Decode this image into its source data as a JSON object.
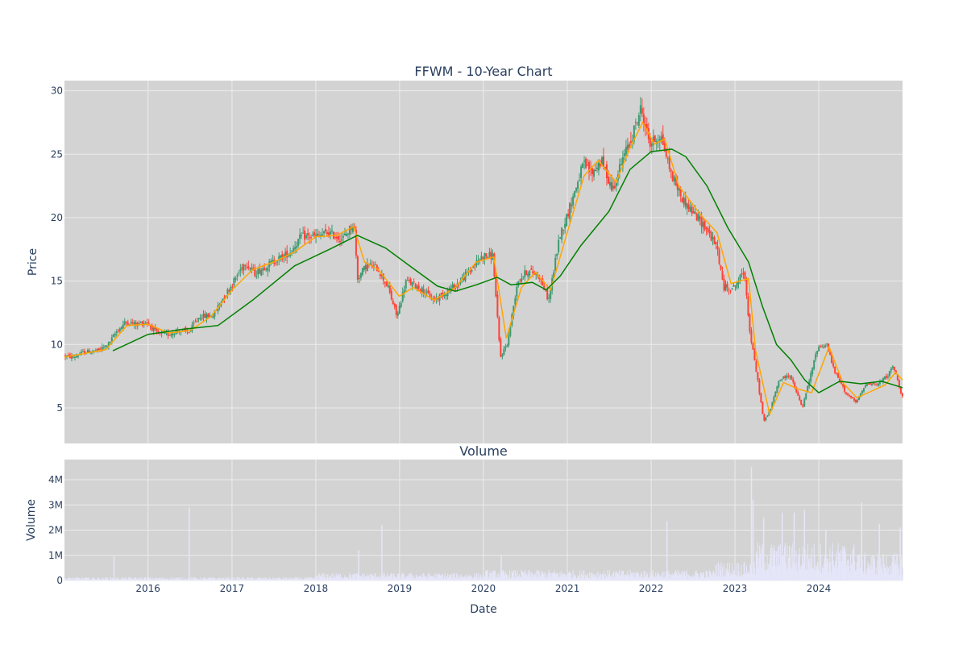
{
  "colors": {
    "plot_bg": "#d3d3d3",
    "grid": "#ececec",
    "increasing": "#3d9970",
    "decreasing": "#ff4136",
    "ma_short": "#ffa500",
    "ma_long": "#008000",
    "volume_bar": "#e6e6fa",
    "text": "#2a3f5f"
  },
  "chart_data": [
    {
      "type": "candlestick",
      "title": "FFWM - 10-Year Chart",
      "xlabel": "",
      "ylabel": "Price",
      "xlim": [
        "2015-01-02",
        "2024-12-31"
      ],
      "ylim": [
        2.2,
        30.8
      ],
      "yticks": [
        5,
        10,
        15,
        20,
        25,
        30
      ],
      "grid": true,
      "legend": "none",
      "series": [
        {
          "kind": "close_price",
          "points": [
            [
              "2015-01-02",
              9.1
            ],
            [
              "2015-02-15",
              9.0
            ],
            [
              "2015-04-01",
              9.4
            ],
            [
              "2015-06-01",
              9.5
            ],
            [
              "2015-07-15",
              10.0
            ],
            [
              "2015-08-20",
              11.0
            ],
            [
              "2015-10-01",
              11.8
            ],
            [
              "2015-11-15",
              11.6
            ],
            [
              "2015-12-30",
              11.8
            ],
            [
              "2016-02-15",
              10.8
            ],
            [
              "2016-04-01",
              10.8
            ],
            [
              "2016-05-15",
              11.1
            ],
            [
              "2016-07-01",
              11.0
            ],
            [
              "2016-08-15",
              12.2
            ],
            [
              "2016-10-15",
              12.3
            ],
            [
              "2016-11-20",
              13.5
            ],
            [
              "2016-12-31",
              14.6
            ],
            [
              "2017-03-01",
              16.5
            ],
            [
              "2017-04-15",
              15.6
            ],
            [
              "2017-06-01",
              16.2
            ],
            [
              "2017-08-01",
              16.8
            ],
            [
              "2017-09-15",
              17.3
            ],
            [
              "2017-11-01",
              18.5
            ],
            [
              "2017-12-31",
              18.5
            ],
            [
              "2018-03-01",
              18.8
            ],
            [
              "2018-05-01",
              18.3
            ],
            [
              "2018-06-20",
              19.6
            ],
            [
              "2018-07-05",
              15.2
            ],
            [
              "2018-08-15",
              16.3
            ],
            [
              "2018-10-01",
              16.0
            ],
            [
              "2018-11-15",
              14.5
            ],
            [
              "2018-12-24",
              12.2
            ],
            [
              "2019-02-01",
              15.0
            ],
            [
              "2019-04-01",
              14.5
            ],
            [
              "2019-06-01",
              13.5
            ],
            [
              "2019-08-01",
              14.2
            ],
            [
              "2019-09-15",
              14.8
            ],
            [
              "2019-11-15",
              16.0
            ],
            [
              "2019-12-31",
              17.0
            ],
            [
              "2020-02-15",
              17.0
            ],
            [
              "2020-03-18",
              9.0
            ],
            [
              "2020-04-20",
              10.2
            ],
            [
              "2020-06-01",
              15.0
            ],
            [
              "2020-07-15",
              15.8
            ],
            [
              "2020-09-01",
              15.5
            ],
            [
              "2020-10-15",
              13.5
            ],
            [
              "2020-12-01",
              18.5
            ],
            [
              "2020-12-31",
              20.0
            ],
            [
              "2021-03-15",
              24.2
            ],
            [
              "2021-04-20",
              23.5
            ],
            [
              "2021-06-01",
              24.5
            ],
            [
              "2021-07-20",
              22.2
            ],
            [
              "2021-09-01",
              24.5
            ],
            [
              "2021-10-15",
              26.5
            ],
            [
              "2021-11-20",
              28.6
            ],
            [
              "2021-12-31",
              25.8
            ],
            [
              "2022-02-15",
              26.5
            ],
            [
              "2022-04-01",
              23.5
            ],
            [
              "2022-05-20",
              21.5
            ],
            [
              "2022-07-01",
              20.5
            ],
            [
              "2022-09-01",
              19.2
            ],
            [
              "2022-10-20",
              17.5
            ],
            [
              "2022-11-15",
              14.5
            ],
            [
              "2022-12-31",
              14.5
            ],
            [
              "2023-02-15",
              15.8
            ],
            [
              "2023-03-10",
              11.0
            ],
            [
              "2023-04-15",
              7.0
            ],
            [
              "2023-05-10",
              3.9
            ],
            [
              "2023-06-10",
              5.0
            ],
            [
              "2023-07-15",
              7.2
            ],
            [
              "2023-09-01",
              7.6
            ],
            [
              "2023-10-25",
              5.0
            ],
            [
              "2023-12-31",
              9.8
            ],
            [
              "2024-02-10",
              10.0
            ],
            [
              "2024-03-10",
              8.0
            ],
            [
              "2024-05-01",
              6.2
            ],
            [
              "2024-06-15",
              5.4
            ],
            [
              "2024-08-01",
              7.0
            ],
            [
              "2024-09-15",
              6.8
            ],
            [
              "2024-11-01",
              7.6
            ],
            [
              "2024-11-25",
              8.3
            ],
            [
              "2024-12-31",
              6.0
            ]
          ]
        },
        {
          "name": "",
          "kind": "moving_average_short",
          "points": [
            [
              "2015-01-02",
              9.0
            ],
            [
              "2015-04-01",
              9.3
            ],
            [
              "2015-07-01",
              9.6
            ],
            [
              "2015-10-01",
              11.5
            ],
            [
              "2016-01-01",
              11.6
            ],
            [
              "2016-04-01",
              10.9
            ],
            [
              "2016-07-01",
              11.1
            ],
            [
              "2016-10-01",
              12.2
            ],
            [
              "2017-01-01",
              14.3
            ],
            [
              "2017-04-01",
              15.9
            ],
            [
              "2017-07-01",
              16.5
            ],
            [
              "2017-10-01",
              17.3
            ],
            [
              "2018-01-01",
              18.5
            ],
            [
              "2018-04-01",
              18.6
            ],
            [
              "2018-06-15",
              19.3
            ],
            [
              "2018-08-01",
              16.5
            ],
            [
              "2018-10-01",
              15.9
            ],
            [
              "2018-12-31",
              13.8
            ],
            [
              "2019-03-01",
              14.5
            ],
            [
              "2019-06-01",
              13.5
            ],
            [
              "2019-09-01",
              14.5
            ],
            [
              "2019-12-01",
              16.5
            ],
            [
              "2020-02-15",
              16.9
            ],
            [
              "2020-04-10",
              10.5
            ],
            [
              "2020-06-15",
              14.5
            ],
            [
              "2020-08-15",
              15.7
            ],
            [
              "2020-10-20",
              14.3
            ],
            [
              "2020-12-31",
              18.8
            ],
            [
              "2021-03-15",
              23.3
            ],
            [
              "2021-05-15",
              24.5
            ],
            [
              "2021-08-01",
              22.8
            ],
            [
              "2021-10-01",
              25.5
            ],
            [
              "2021-11-25",
              27.5
            ],
            [
              "2022-01-15",
              25.8
            ],
            [
              "2022-03-01",
              26.2
            ],
            [
              "2022-05-01",
              22.5
            ],
            [
              "2022-08-01",
              20.3
            ],
            [
              "2022-10-15",
              18.8
            ],
            [
              "2022-12-15",
              14.8
            ],
            [
              "2023-03-01",
              15.2
            ],
            [
              "2023-04-01",
              9.5
            ],
            [
              "2023-06-01",
              4.5
            ],
            [
              "2023-08-01",
              7.0
            ],
            [
              "2023-10-01",
              6.5
            ],
            [
              "2023-12-01",
              6.2
            ],
            [
              "2024-02-15",
              9.8
            ],
            [
              "2024-04-15",
              7.0
            ],
            [
              "2024-06-15",
              5.8
            ],
            [
              "2024-08-15",
              6.3
            ],
            [
              "2024-10-15",
              6.8
            ],
            [
              "2024-12-01",
              7.8
            ],
            [
              "2024-12-31",
              7.2
            ]
          ]
        },
        {
          "name": "",
          "kind": "moving_average_long",
          "points": [
            [
              "2015-08-01",
              9.5
            ],
            [
              "2016-01-01",
              10.8
            ],
            [
              "2016-06-01",
              11.2
            ],
            [
              "2016-11-01",
              11.5
            ],
            [
              "2017-04-01",
              13.5
            ],
            [
              "2017-10-01",
              16.2
            ],
            [
              "2018-03-01",
              17.5
            ],
            [
              "2018-07-01",
              18.6
            ],
            [
              "2018-11-01",
              17.6
            ],
            [
              "2019-03-01",
              16.0
            ],
            [
              "2019-06-15",
              14.6
            ],
            [
              "2019-09-01",
              14.2
            ],
            [
              "2019-12-01",
              14.7
            ],
            [
              "2020-03-01",
              15.3
            ],
            [
              "2020-05-01",
              14.7
            ],
            [
              "2020-08-01",
              14.9
            ],
            [
              "2020-10-01",
              14.3
            ],
            [
              "2020-12-01",
              15.4
            ],
            [
              "2021-03-01",
              17.8
            ],
            [
              "2021-07-01",
              20.5
            ],
            [
              "2021-10-01",
              23.8
            ],
            [
              "2022-01-01",
              25.2
            ],
            [
              "2022-04-01",
              25.4
            ],
            [
              "2022-06-01",
              24.8
            ],
            [
              "2022-09-01",
              22.5
            ],
            [
              "2022-12-01",
              19.2
            ],
            [
              "2023-03-01",
              16.5
            ],
            [
              "2023-05-01",
              13.0
            ],
            [
              "2023-07-01",
              10.0
            ],
            [
              "2023-09-01",
              8.8
            ],
            [
              "2023-11-01",
              7.2
            ],
            [
              "2024-01-01",
              6.2
            ],
            [
              "2024-04-01",
              7.1
            ],
            [
              "2024-07-01",
              6.9
            ],
            [
              "2024-10-01",
              7.1
            ],
            [
              "2024-12-31",
              6.6
            ]
          ]
        }
      ]
    },
    {
      "type": "bar",
      "title": "Volume",
      "xlabel": "Date",
      "ylabel": "Volume",
      "ylim": [
        0,
        4800000
      ],
      "yticks": [
        0,
        1000000,
        2000000,
        3000000,
        4000000
      ],
      "ytick_labels": [
        "0",
        "1M",
        "2M",
        "3M",
        "4M"
      ],
      "xtick_labels": [
        "2016",
        "2017",
        "2018",
        "2019",
        "2020",
        "2021",
        "2022",
        "2023",
        "2024"
      ],
      "xticks": [
        "2016-01-01",
        "2017-01-01",
        "2018-01-01",
        "2019-01-01",
        "2020-01-01",
        "2021-01-01",
        "2022-01-01",
        "2023-01-01",
        "2024-01-01"
      ],
      "notable_bars": [
        [
          "2015-08-05",
          950000
        ],
        [
          "2016-06-28",
          2900000
        ],
        [
          "2018-07-06",
          1200000
        ],
        [
          "2018-10-15",
          2200000
        ],
        [
          "2020-03-18",
          1000000
        ],
        [
          "2022-03-10",
          2350000
        ],
        [
          "2023-03-13",
          4500000
        ],
        [
          "2023-03-20",
          3200000
        ],
        [
          "2023-05-05",
          2500000
        ],
        [
          "2023-07-25",
          2700000
        ],
        [
          "2023-09-15",
          2700000
        ],
        [
          "2023-10-30",
          2800000
        ],
        [
          "2024-01-31",
          2000000
        ],
        [
          "2024-07-05",
          3100000
        ],
        [
          "2024-09-20",
          2250000
        ],
        [
          "2024-12-20",
          2100000
        ]
      ]
    }
  ]
}
